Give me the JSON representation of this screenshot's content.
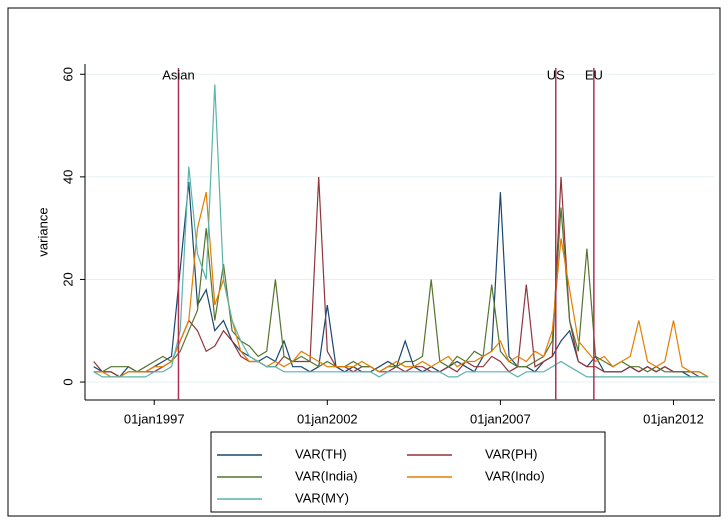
{
  "chart_data": {
    "type": "line",
    "y_label": "variance",
    "x": [
      1995.25,
      1995.5,
      1995.75,
      1996,
      1996.25,
      1996.5,
      1996.75,
      1997,
      1997.25,
      1997.5,
      1997.75,
      1998,
      1998.25,
      1998.5,
      1998.75,
      1999,
      1999.25,
      1999.5,
      1999.75,
      2000,
      2000.25,
      2000.5,
      2000.75,
      2001,
      2001.25,
      2001.5,
      2001.75,
      2002,
      2002.25,
      2002.5,
      2002.75,
      2003,
      2003.25,
      2003.5,
      2003.75,
      2004,
      2004.25,
      2004.5,
      2004.75,
      2005,
      2005.25,
      2005.5,
      2005.75,
      2006,
      2006.25,
      2006.5,
      2006.75,
      2007,
      2007.25,
      2007.5,
      2007.75,
      2008,
      2008.25,
      2008.5,
      2008.75,
      2009,
      2009.25,
      2009.5,
      2009.75,
      2010,
      2010.25,
      2010.5,
      2010.75,
      2011,
      2011.25,
      2011.5,
      2011.75,
      2012,
      2012.25,
      2012.5,
      2012.75,
      2013
    ],
    "series": [
      {
        "name": "VAR(TH)",
        "color": "#1a476f",
        "values": [
          3,
          2,
          2,
          1,
          3,
          2,
          2,
          3,
          4,
          5,
          22,
          39,
          15,
          18,
          10,
          12,
          8,
          6,
          5,
          4,
          5,
          4,
          8,
          3,
          3,
          2,
          3,
          15,
          3,
          2,
          3,
          2,
          2,
          3,
          4,
          3,
          8,
          3,
          2,
          3,
          2,
          3,
          4,
          3,
          2,
          5,
          6,
          37,
          5,
          3,
          3,
          2,
          4,
          5,
          8,
          10,
          4,
          3,
          5,
          2,
          2,
          2,
          3,
          2,
          3,
          2,
          3,
          2,
          2,
          1,
          1,
          1
        ]
      },
      {
        "name": "VAR(PH)",
        "color": "#90353b",
        "values": [
          4,
          2,
          2,
          1,
          2,
          2,
          2,
          2,
          3,
          4,
          8,
          12,
          10,
          6,
          7,
          10,
          8,
          5,
          4,
          4,
          3,
          3,
          5,
          4,
          4,
          4,
          40,
          6,
          3,
          3,
          2,
          3,
          3,
          2,
          2,
          3,
          2,
          3,
          3,
          2,
          2,
          3,
          2,
          4,
          3,
          3,
          5,
          4,
          2,
          3,
          19,
          3,
          4,
          5,
          40,
          12,
          4,
          3,
          3,
          2,
          2,
          2,
          3,
          2,
          3,
          2,
          3,
          2,
          2,
          2,
          1,
          1
        ]
      },
      {
        "name": "VAR(India)",
        "color": "#55752f",
        "values": [
          2,
          2,
          3,
          3,
          3,
          2,
          3,
          4,
          5,
          4,
          6,
          10,
          14,
          30,
          12,
          23,
          10,
          8,
          7,
          5,
          6,
          20,
          5,
          4,
          5,
          4,
          3,
          4,
          3,
          3,
          4,
          3,
          3,
          2,
          3,
          3,
          4,
          4,
          5,
          20,
          4,
          3,
          5,
          4,
          6,
          5,
          19,
          6,
          4,
          3,
          3,
          4,
          5,
          8,
          34,
          12,
          6,
          26,
          5,
          4,
          3,
          4,
          3,
          3,
          2,
          3,
          2,
          2,
          2,
          2,
          2,
          1
        ]
      },
      {
        "name": "VAR(Indo)",
        "color": "#e37e00",
        "values": [
          2,
          2,
          1,
          1,
          2,
          2,
          2,
          3,
          3,
          4,
          8,
          12,
          30,
          37,
          15,
          20,
          12,
          6,
          4,
          4,
          3,
          4,
          3,
          4,
          6,
          5,
          4,
          3,
          3,
          3,
          3,
          4,
          3,
          2,
          3,
          4,
          3,
          3,
          4,
          3,
          4,
          5,
          3,
          4,
          4,
          5,
          6,
          8,
          4,
          5,
          4,
          6,
          5,
          10,
          28,
          18,
          8,
          6,
          4,
          5,
          3,
          4,
          5,
          12,
          4,
          3,
          4,
          12,
          3,
          2,
          2,
          1
        ]
      },
      {
        "name": "VAR(MY)",
        "color": "#5ab4ac",
        "values": [
          2,
          1,
          1,
          1,
          1,
          1,
          1,
          2,
          2,
          3,
          10,
          42,
          25,
          20,
          58,
          20,
          12,
          8,
          5,
          4,
          3,
          3,
          2,
          2,
          2,
          2,
          2,
          2,
          2,
          2,
          2,
          2,
          2,
          1,
          2,
          2,
          2,
          2,
          2,
          2,
          2,
          1,
          1,
          2,
          2,
          2,
          2,
          2,
          2,
          1,
          2,
          2,
          2,
          3,
          4,
          3,
          2,
          1,
          1,
          1,
          1,
          1,
          1,
          1,
          1,
          1,
          1,
          1,
          1,
          1,
          1,
          1
        ]
      }
    ],
    "events": [
      {
        "x": 1997.7,
        "label": "Asian"
      },
      {
        "x": 2008.6,
        "label": "US"
      },
      {
        "x": 2009.7,
        "label": "EU"
      }
    ],
    "event_color": "#b0304f",
    "xlim": [
      1995,
      2013.2
    ],
    "xticks": [
      {
        "value": 1997,
        "label": "01jan1997"
      },
      {
        "value": 2002,
        "label": "01jan2002"
      },
      {
        "value": 2007,
        "label": "01jan2007"
      },
      {
        "value": 2012,
        "label": "01jan2012"
      }
    ],
    "ylim": [
      -3.5,
      62
    ],
    "yticks": [
      0,
      20,
      40,
      60
    ],
    "grid": true
  }
}
